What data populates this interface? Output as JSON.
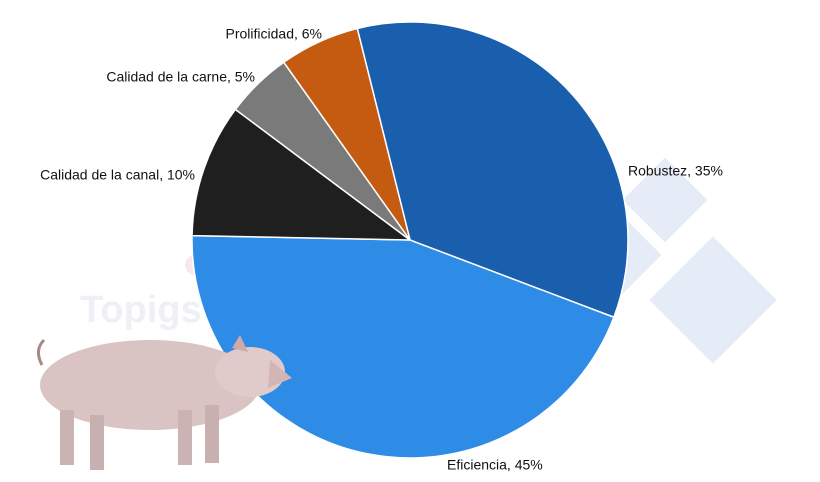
{
  "chart_data": {
    "type": "pie",
    "labels": [
      "Robustez, 35%",
      "Eficiencia, 45%",
      "Calidad de la canal, 10%",
      "Calidad de la carne, 5%",
      "Prolificidad, 6%"
    ],
    "values": [
      35,
      45,
      10,
      5,
      6
    ],
    "colors": [
      "#1a5fad",
      "#2e8be6",
      "#1f1f1f",
      "#7a7a7a",
      "#c55a11"
    ]
  },
  "watermark": "Topigs Norsvin"
}
